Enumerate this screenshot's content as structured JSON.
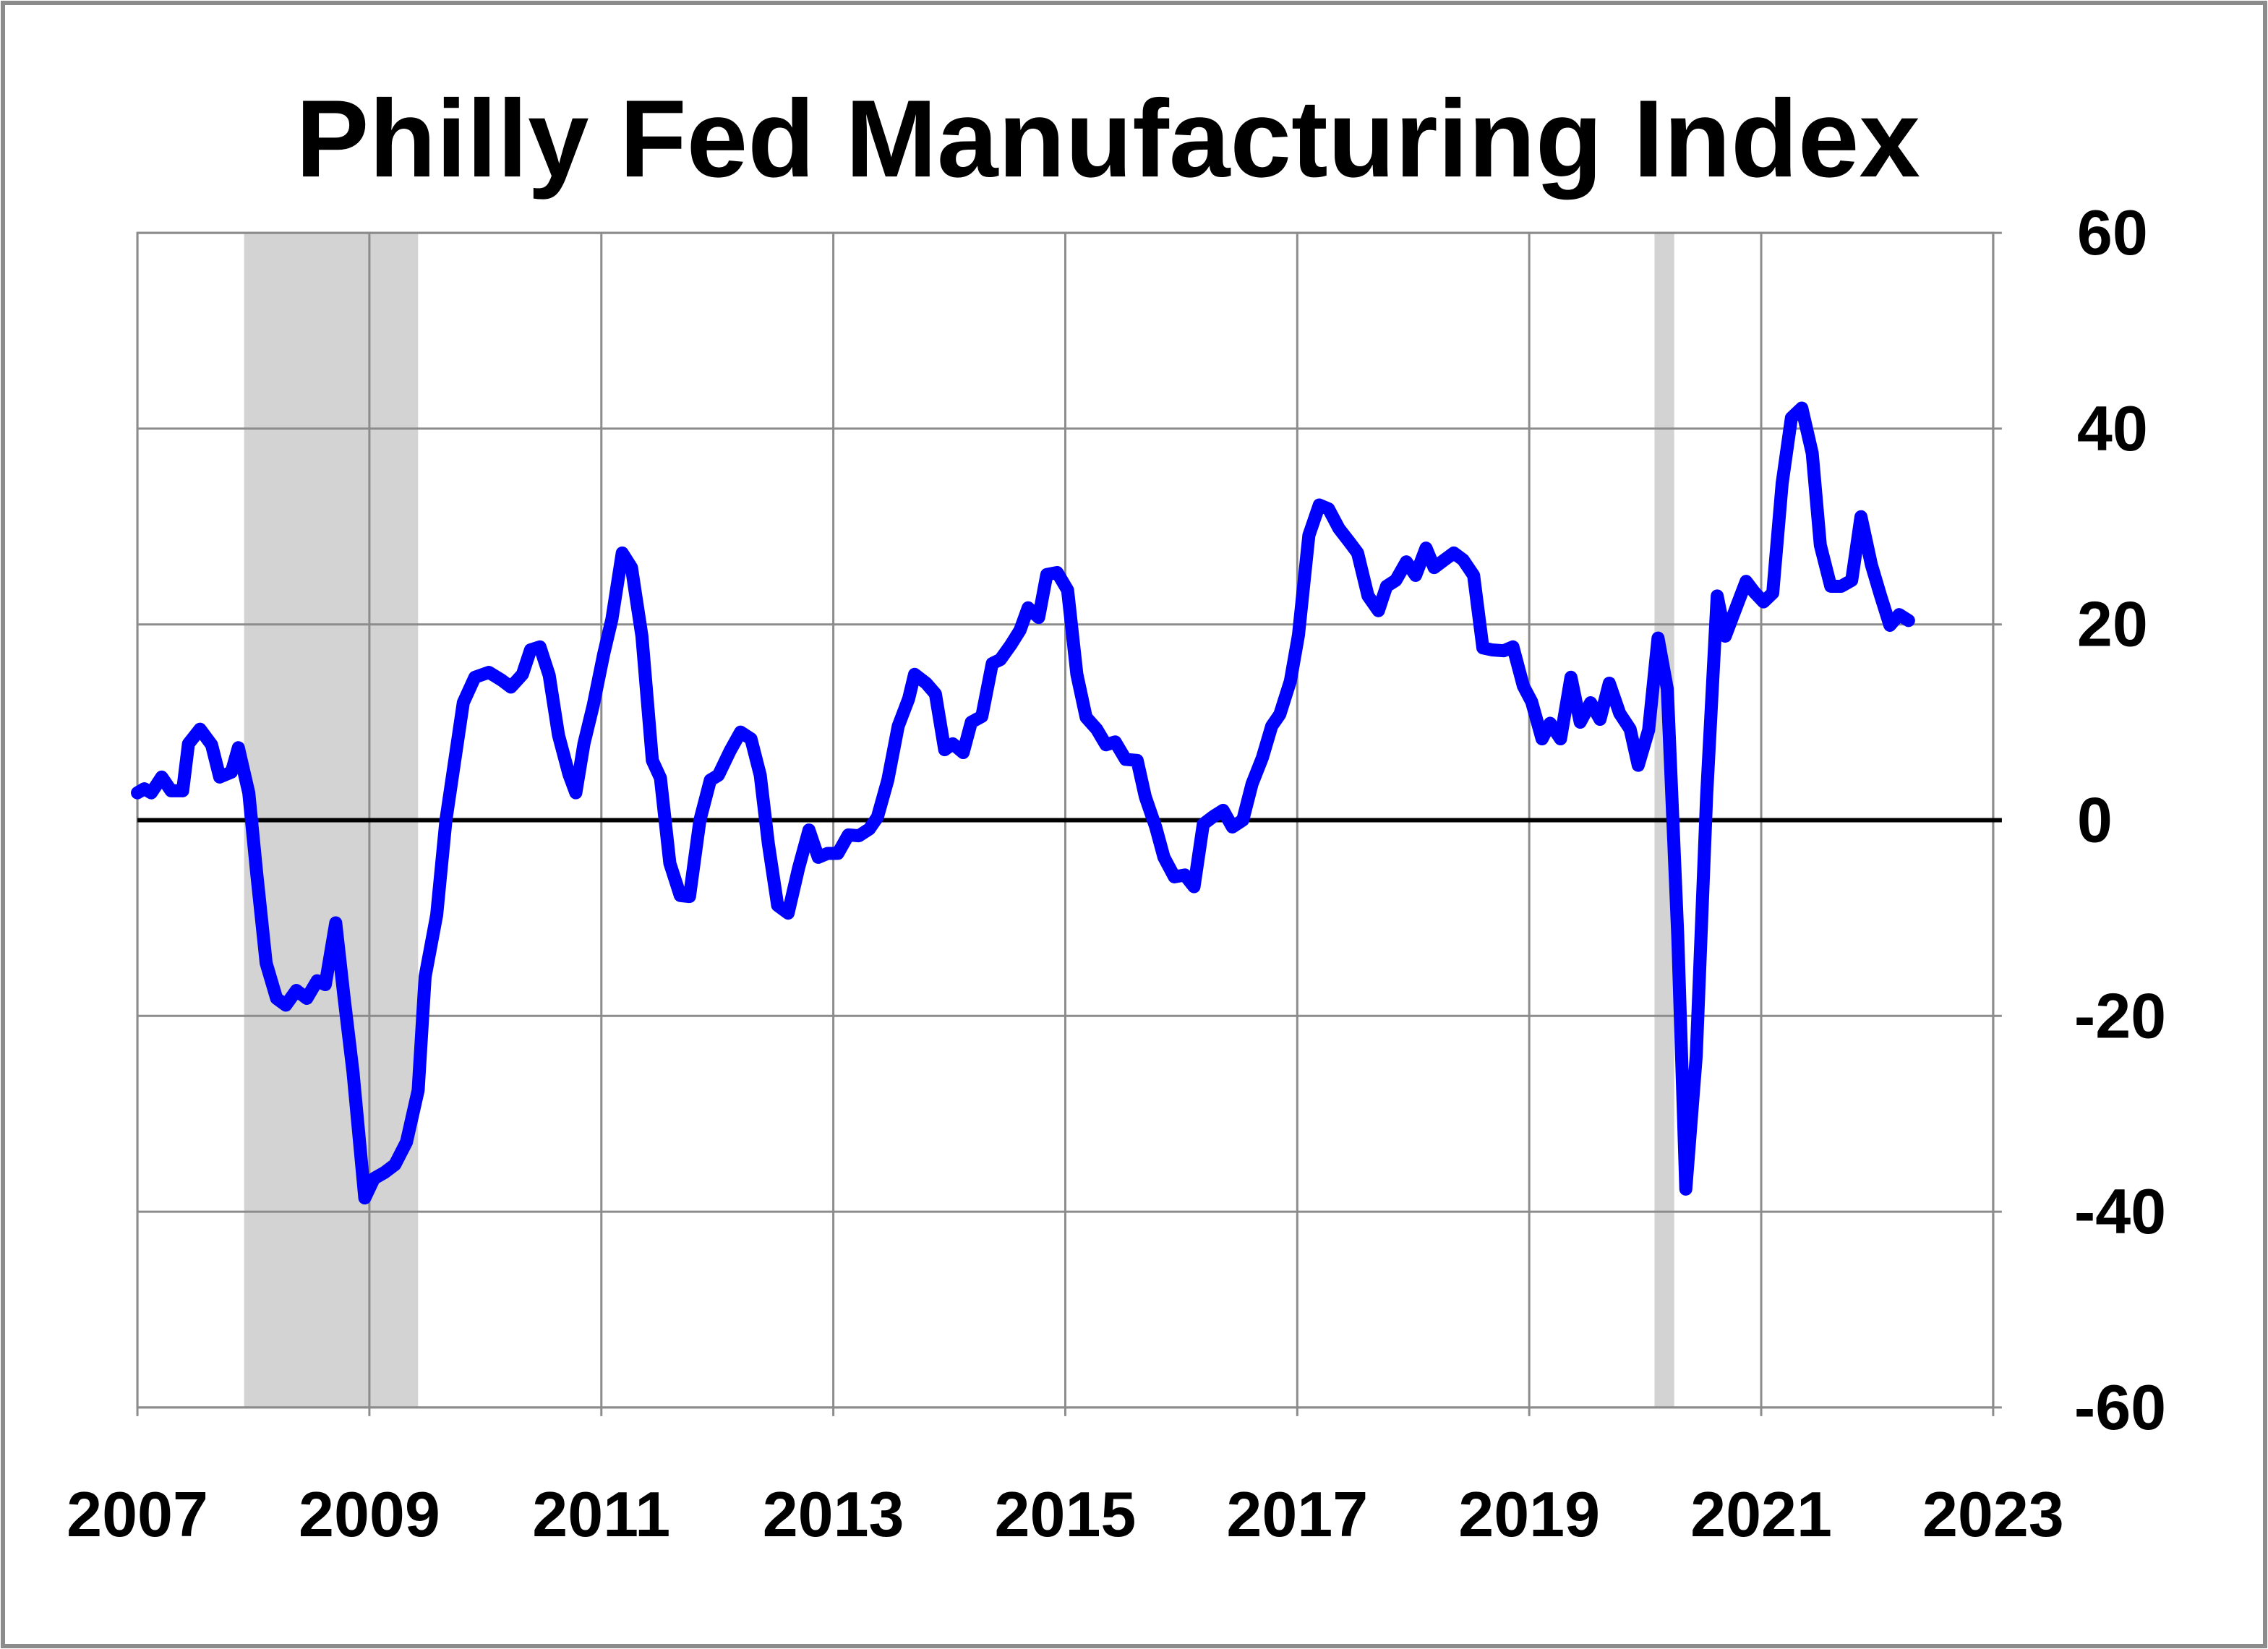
{
  "chart_data": {
    "type": "line",
    "title": "Philly Fed Manufacturing Index",
    "xlabel": "",
    "ylabel": "",
    "xlim": [
      2007,
      2023
    ],
    "ylim": [
      -60,
      60
    ],
    "x_ticks": [
      "2007",
      "2009",
      "2011",
      "2013",
      "2015",
      "2017",
      "2019",
      "2021",
      "2023"
    ],
    "y_ticks": [
      "60",
      "40",
      "20",
      "0",
      "-20",
      "-40",
      "-60"
    ],
    "y_axis_side": "right",
    "grid": true,
    "legend": "none",
    "series_color": "#0000ff",
    "recession_color": "#d3d3d3",
    "recessions": [
      [
        2007.92,
        2009.42
      ],
      [
        2020.08,
        2020.25
      ]
    ],
    "series": [
      {
        "x": [
          2007.0,
          2007.06,
          2007.12,
          2007.21,
          2007.29,
          2007.39,
          2007.44,
          2007.54,
          2007.64,
          2007.71,
          2007.81,
          2007.87,
          2007.96,
          2008.03,
          2008.11,
          2008.2,
          2008.28,
          2008.37,
          2008.46,
          2008.55,
          2008.62,
          2008.71,
          2008.78,
          2008.86,
          2008.96,
          2009.04,
          2009.13,
          2009.22,
          2009.32,
          2009.42,
          2009.48,
          2009.58,
          2009.66,
          2009.73,
          2009.81,
          2009.91,
          2010.03,
          2010.14,
          2010.22,
          2010.32,
          2010.39,
          2010.47,
          2010.55,
          2010.63,
          2010.72,
          2010.78,
          2010.85,
          2010.93,
          2011.02,
          2011.09,
          2011.18,
          2011.26,
          2011.35,
          2011.44,
          2011.51,
          2011.59,
          2011.68,
          2011.76,
          2011.85,
          2011.94,
          2012.01,
          2012.11,
          2012.2,
          2012.29,
          2012.37,
          2012.44,
          2012.52,
          2012.61,
          2012.7,
          2012.79,
          2012.87,
          2012.95,
          2013.04,
          2013.13,
          2013.22,
          2013.31,
          2013.38,
          2013.47,
          2013.56,
          2013.65,
          2013.7,
          2013.8,
          2013.88,
          2013.96,
          2014.03,
          2014.12,
          2014.19,
          2014.28,
          2014.37,
          2014.44,
          2014.53,
          2014.61,
          2014.68,
          2014.77,
          2014.84,
          2014.93,
          2015.02,
          2015.1,
          2015.18,
          2015.27,
          2015.35,
          2015.43,
          2015.52,
          2015.62,
          2015.69,
          2015.78,
          2015.85,
          2015.94,
          2016.03,
          2016.11,
          2016.19,
          2016.28,
          2016.36,
          2016.44,
          2016.53,
          2016.61,
          2016.7,
          2016.78,
          2016.85,
          2016.94,
          2017.01,
          2017.1,
          2017.19,
          2017.27,
          2017.36,
          2017.45,
          2017.52,
          2017.61,
          2017.7,
          2017.77,
          2017.85,
          2017.94,
          2018.02,
          2018.11,
          2018.18,
          2018.27,
          2018.35,
          2018.43,
          2018.52,
          2018.6,
          2018.68,
          2018.78,
          2018.86,
          2018.95,
          2019.02,
          2019.11,
          2019.18,
          2019.27,
          2019.36,
          2019.44,
          2019.53,
          2019.61,
          2019.69,
          2019.78,
          2019.87,
          2019.94,
          2020.03,
          2020.11,
          2020.19,
          2020.28,
          2020.35,
          2020.44,
          2020.53,
          2020.62,
          2020.69,
          2020.78,
          2020.87,
          2020.94,
          2021.02,
          2021.1,
          2021.18,
          2021.26,
          2021.35,
          2021.44,
          2021.51,
          2021.6,
          2021.69,
          2021.78,
          2021.86,
          2021.95,
          2022.03,
          2022.11,
          2022.19,
          2022.27
        ],
        "values": [
          2.8,
          3.2,
          2.8,
          4.4,
          3.0,
          3.0,
          7.8,
          9.3,
          7.7,
          4.4,
          4.9,
          7.4,
          2.8,
          -5.6,
          -14.6,
          -18.2,
          -18.9,
          -17.4,
          -18.2,
          -16.4,
          -16.8,
          -10.5,
          -17.9,
          -25.8,
          -38.6,
          -36.6,
          -36.0,
          -35.2,
          -32.9,
          -27.6,
          -16.0,
          -9.7,
          0.0,
          5.6,
          12.0,
          14.6,
          15.1,
          14.3,
          13.6,
          14.9,
          17.4,
          17.7,
          14.8,
          8.7,
          4.7,
          2.8,
          7.8,
          11.7,
          17.0,
          20.5,
          27.3,
          25.8,
          18.8,
          6.1,
          4.3,
          -4.4,
          -7.7,
          -7.8,
          0.0,
          4.1,
          4.6,
          7.1,
          9.0,
          8.3,
          4.6,
          -2.4,
          -8.7,
          -9.5,
          -4.9,
          -1.0,
          -3.8,
          -3.4,
          -3.4,
          -1.5,
          -1.6,
          -0.9,
          0.3,
          4.1,
          9.6,
          12.4,
          14.9,
          14.0,
          12.9,
          7.2,
          7.8,
          6.9,
          10.0,
          10.6,
          16.0,
          16.4,
          17.9,
          19.4,
          21.7,
          20.7,
          25.1,
          25.3,
          23.5,
          14.9,
          10.5,
          9.3,
          7.7,
          8.0,
          6.2,
          6.1,
          2.4,
          -0.7,
          -3.8,
          -5.8,
          -5.6,
          -6.8,
          -0.4,
          0.4,
          1.0,
          -0.7,
          0.0,
          3.7,
          6.4,
          9.6,
          10.8,
          14.2,
          18.9,
          29.1,
          32.2,
          31.8,
          29.8,
          28.4,
          27.3,
          22.9,
          21.4,
          23.9,
          24.5,
          26.4,
          25.0,
          27.8,
          25.8,
          26.6,
          27.3,
          26.6,
          25.0,
          17.6,
          17.4,
          17.3,
          17.7,
          13.7,
          12.1,
          8.3,
          9.9,
          8.3,
          14.6,
          10.0,
          12.0,
          10.3,
          14.0,
          10.9,
          9.3,
          5.6,
          9.2,
          18.6,
          13.4,
          -11.7,
          -37.7,
          -24.1,
          2.5,
          22.9,
          18.8,
          21.6,
          24.4,
          23.3,
          22.3,
          23.2,
          34.4,
          41.1,
          42.1,
          37.5,
          28.1,
          23.9,
          23.9,
          24.5,
          31.0,
          26.1,
          22.9,
          19.9,
          21.0,
          20.4
        ]
      }
    ]
  }
}
